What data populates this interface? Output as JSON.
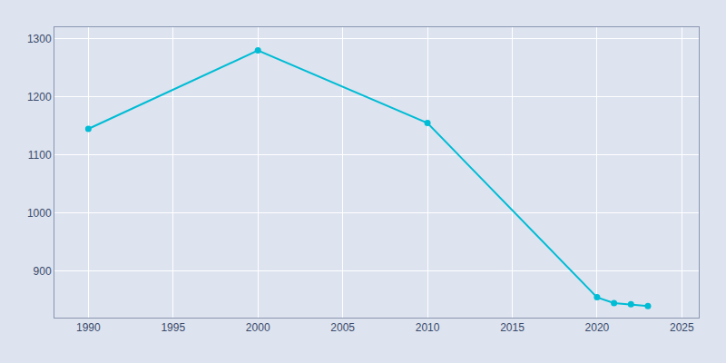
{
  "chart_data": {
    "type": "line",
    "x": [
      1990,
      2000,
      2010,
      2020,
      2021,
      2022,
      2023
    ],
    "values": [
      1145,
      1280,
      1155,
      855,
      845,
      843,
      840
    ],
    "color": "#00bcd4",
    "marker": "circle",
    "xlim": [
      1988,
      2026
    ],
    "ylim": [
      820,
      1320
    ],
    "xticks": [
      1990,
      1995,
      2000,
      2005,
      2010,
      2015,
      2020,
      2025
    ],
    "yticks": [
      900,
      1000,
      1100,
      1200,
      1300
    ],
    "grid": true
  }
}
